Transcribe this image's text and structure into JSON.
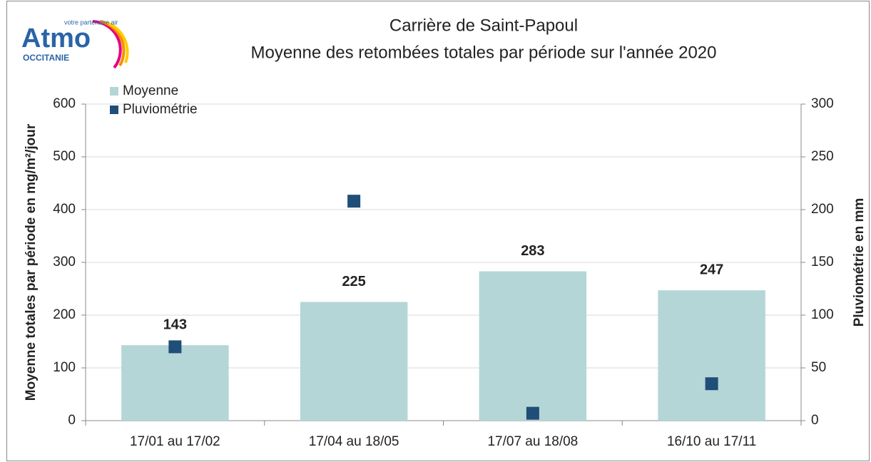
{
  "chart_data": {
    "type": "bar",
    "logo": {
      "name": "Atmo",
      "tagline": "votre partenaire air",
      "region": "OCCITANIE"
    },
    "title": "Carrière de Saint-Papoul",
    "subtitle": "Moyenne des retombées totales par période sur l'année 2020",
    "categories": [
      "17/01 au 17/02",
      "17/04 au 18/05",
      "17/07 au 18/08",
      "16/10 au 17/11"
    ],
    "series": [
      {
        "name": "Moyenne",
        "color": "#b4d6d6",
        "values": [
          143,
          225,
          283,
          247
        ]
      },
      {
        "name": "Pluviométrie",
        "color": "#1f4e79",
        "axis": "y2",
        "type": "scatter",
        "values": [
          70,
          208,
          7,
          35
        ]
      }
    ],
    "ylabel": "Moyenne totales par période en mg/m²/jour",
    "y2label": "Pluviométrie en mm",
    "ylim": [
      0,
      600
    ],
    "yticks": [
      0,
      100,
      200,
      300,
      400,
      500,
      600
    ],
    "y2lim": [
      0,
      300
    ],
    "y2ticks": [
      0,
      50,
      100,
      150,
      200,
      250,
      300
    ],
    "grid": true,
    "legend": "top-left"
  }
}
